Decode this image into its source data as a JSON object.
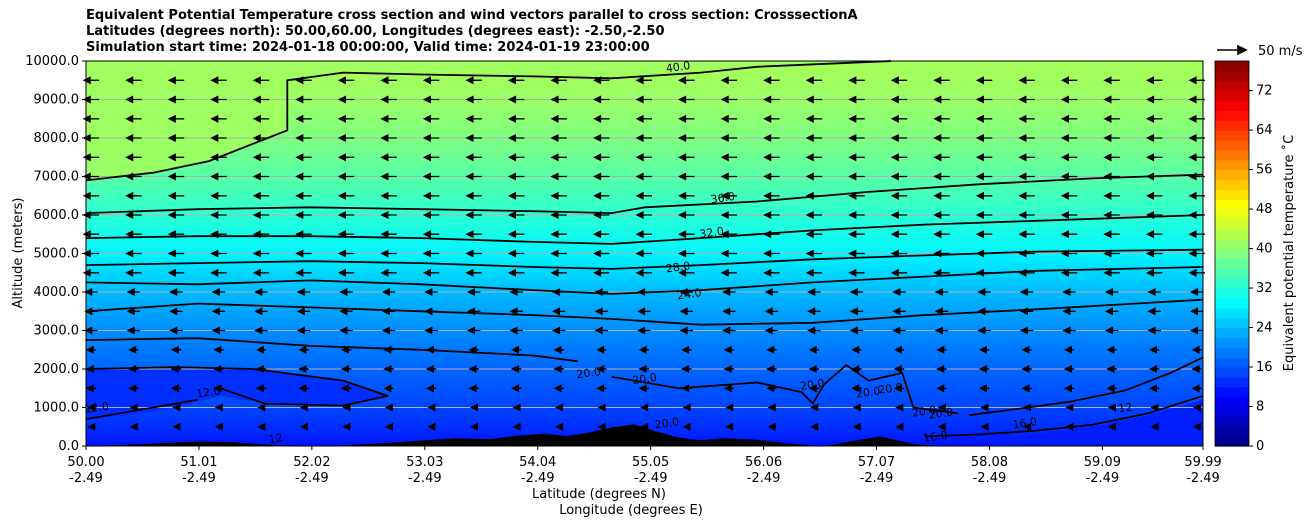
{
  "chart_data": {
    "type": "contourf",
    "title_lines": [
      "Equivalent Potential Temperature cross section and wind vectors parallel to cross section: CrosssectionA",
      "Latitudes (degrees north): 50.00,60.00, Longitudes (degrees east): -2.50,-2.50",
      "Simulation start time: 2024-01-18 00:00:00, Valid time: 2024-01-19 23:00:00"
    ],
    "xlabel_lat": "Latitude (degrees N)",
    "xlabel_lon": "Longitude (degrees E)",
    "ylabel": "Altitude (meters)",
    "x_ticks": [
      {
        "lat": "50.00",
        "lon": "-2.49"
      },
      {
        "lat": "51.01",
        "lon": "-2.49"
      },
      {
        "lat": "52.02",
        "lon": "-2.49"
      },
      {
        "lat": "53.03",
        "lon": "-2.49"
      },
      {
        "lat": "54.04",
        "lon": "-2.49"
      },
      {
        "lat": "55.05",
        "lon": "-2.49"
      },
      {
        "lat": "56.06",
        "lon": "-2.49"
      },
      {
        "lat": "57.07",
        "lon": "-2.49"
      },
      {
        "lat": "58.08",
        "lon": "-2.49"
      },
      {
        "lat": "59.09",
        "lon": "-2.49"
      },
      {
        "lat": "59.99",
        "lon": "-2.49"
      }
    ],
    "xlim": [
      50.0,
      59.99
    ],
    "y_ticks": [
      "0.0",
      "1000.0",
      "2000.0",
      "3000.0",
      "4000.0",
      "5000.0",
      "6000.0",
      "7000.0",
      "8000.0",
      "9000.0",
      "10000.0"
    ],
    "ylim": [
      0,
      10000
    ],
    "grid": "horizontal",
    "colorbar": {
      "label": "Equivalent potential temperature ˚C",
      "ticks": [
        "0",
        "8",
        "16",
        "24",
        "32",
        "40",
        "48",
        "56",
        "64",
        "72"
      ],
      "range": [
        0,
        78
      ],
      "colormap": "jet"
    },
    "quiver_key": "50 m/s",
    "contour_labels": [
      "40.0",
      "36.0",
      "32.0",
      "28.0",
      "24.0",
      "20.0",
      "20.0",
      "20.0",
      "20.0",
      "20.0",
      "20.0",
      "20.0",
      "20.0",
      "16.0",
      "16.0",
      "12.0",
      "12.0",
      "12",
      "12"
    ],
    "contours": [
      {
        "level": 40,
        "points": [
          [
            50.0,
            6900
          ],
          [
            50.6,
            7100
          ],
          [
            51.1,
            7400
          ],
          [
            51.8,
            8200
          ],
          [
            51.8,
            8800
          ],
          [
            51.8,
            9500
          ],
          [
            52.3,
            9700
          ],
          [
            53.0,
            9650
          ],
          [
            54.0,
            9600
          ],
          [
            54.7,
            9550
          ],
          [
            55.5,
            9700
          ],
          [
            56.0,
            9850
          ],
          [
            57.2,
            10000
          ]
        ]
      },
      {
        "level": 36,
        "points": [
          [
            50.0,
            6050
          ],
          [
            51.0,
            6150
          ],
          [
            52.0,
            6200
          ],
          [
            53.0,
            6150
          ],
          [
            54.0,
            6100
          ],
          [
            54.7,
            6050
          ],
          [
            55.0,
            6200
          ],
          [
            56.0,
            6350
          ],
          [
            57.0,
            6600
          ],
          [
            58.0,
            6800
          ],
          [
            59.0,
            6950
          ],
          [
            59.99,
            7050
          ]
        ]
      },
      {
        "level": 32,
        "points": [
          [
            50.0,
            5400
          ],
          [
            51.0,
            5450
          ],
          [
            52.0,
            5450
          ],
          [
            53.0,
            5400
          ],
          [
            54.0,
            5300
          ],
          [
            54.7,
            5250
          ],
          [
            55.5,
            5400
          ],
          [
            56.5,
            5600
          ],
          [
            57.5,
            5750
          ],
          [
            58.5,
            5850
          ],
          [
            59.99,
            6000
          ]
        ]
      },
      {
        "level": 28,
        "points": [
          [
            50.0,
            4700
          ],
          [
            51.0,
            4750
          ],
          [
            52.0,
            4800
          ],
          [
            53.0,
            4750
          ],
          [
            54.0,
            4650
          ],
          [
            54.7,
            4600
          ],
          [
            55.5,
            4700
          ],
          [
            56.5,
            4850
          ],
          [
            57.5,
            4950
          ],
          [
            58.5,
            5050
          ],
          [
            59.99,
            5100
          ]
        ]
      },
      {
        "level": 24,
        "points": [
          [
            50.0,
            4250
          ],
          [
            51.0,
            4200
          ],
          [
            52.0,
            4300
          ],
          [
            53.0,
            4200
          ],
          [
            54.0,
            4050
          ],
          [
            54.7,
            3950
          ],
          [
            55.5,
            4050
          ],
          [
            56.5,
            4250
          ],
          [
            57.5,
            4400
          ],
          [
            58.5,
            4550
          ],
          [
            59.99,
            4650
          ]
        ]
      },
      {
        "level": 22,
        "points": [
          [
            50.0,
            3500
          ],
          [
            51.0,
            3700
          ],
          [
            52.0,
            3600
          ],
          [
            53.0,
            3500
          ],
          [
            54.0,
            3400
          ],
          [
            54.7,
            3300
          ],
          [
            55.5,
            3150
          ],
          [
            56.5,
            3200
          ],
          [
            57.5,
            3400
          ],
          [
            58.5,
            3550
          ],
          [
            59.99,
            3800
          ]
        ]
      },
      {
        "level": 21,
        "points": [
          [
            50.0,
            2750
          ],
          [
            51.0,
            2800
          ],
          [
            52.0,
            2600
          ],
          [
            53.0,
            2500
          ],
          [
            54.0,
            2350
          ],
          [
            54.4,
            2200
          ]
        ]
      },
      {
        "level": 20,
        "points": [
          [
            50.0,
            2000
          ],
          [
            50.8,
            2050
          ],
          [
            51.5,
            2000
          ],
          [
            52.3,
            1700
          ],
          [
            52.7,
            1300
          ],
          [
            52.3,
            1050
          ],
          [
            51.6,
            1100
          ],
          [
            51.4,
            1300
          ],
          [
            51.2,
            1500
          ]
        ]
      },
      {
        "level": 20.5,
        "points": [
          [
            54.7,
            1800
          ],
          [
            55.3,
            1500
          ],
          [
            56.0,
            1650
          ],
          [
            56.4,
            1400
          ],
          [
            56.5,
            1100
          ],
          [
            56.6,
            1600
          ],
          [
            56.8,
            2100
          ],
          [
            57.0,
            1700
          ],
          [
            57.3,
            1900
          ],
          [
            57.4,
            1000
          ],
          [
            57.8,
            850
          ]
        ]
      },
      {
        "level": 20.2,
        "points": [
          [
            57.9,
            800
          ],
          [
            58.3,
            950
          ],
          [
            58.8,
            1150
          ],
          [
            59.3,
            1450
          ],
          [
            59.7,
            1900
          ],
          [
            59.99,
            2300
          ]
        ]
      },
      {
        "level": 16,
        "points": [
          [
            57.5,
            250
          ],
          [
            58.0,
            300
          ],
          [
            58.5,
            400
          ],
          [
            59.0,
            550
          ],
          [
            59.5,
            850
          ],
          [
            59.99,
            1300
          ]
        ]
      },
      {
        "level": 12,
        "points": [
          [
            50.0,
            700
          ],
          [
            50.4,
            900
          ],
          [
            50.8,
            1100
          ],
          [
            51.0,
            1200
          ]
        ]
      }
    ],
    "terrain_lat": [
      50.0,
      50.5,
      51.0,
      51.3,
      51.6,
      52.0,
      52.3,
      52.7,
      53.0,
      53.3,
      53.6,
      53.9,
      54.1,
      54.3,
      54.5,
      54.7,
      54.9,
      55.1,
      55.3,
      55.5,
      55.7,
      56.0,
      56.3,
      56.6,
      56.9,
      57.1,
      57.4,
      57.7,
      58.0,
      59.0,
      59.99
    ],
    "terrain_alt": [
      0,
      50,
      120,
      100,
      40,
      0,
      20,
      80,
      140,
      200,
      180,
      280,
      320,
      260,
      350,
      480,
      560,
      380,
      220,
      150,
      200,
      160,
      60,
      0,
      150,
      250,
      50,
      0,
      0,
      0,
      0
    ],
    "wind_field": "uniform westward (arrows pointing to decreasing latitude); weaker near surface"
  }
}
